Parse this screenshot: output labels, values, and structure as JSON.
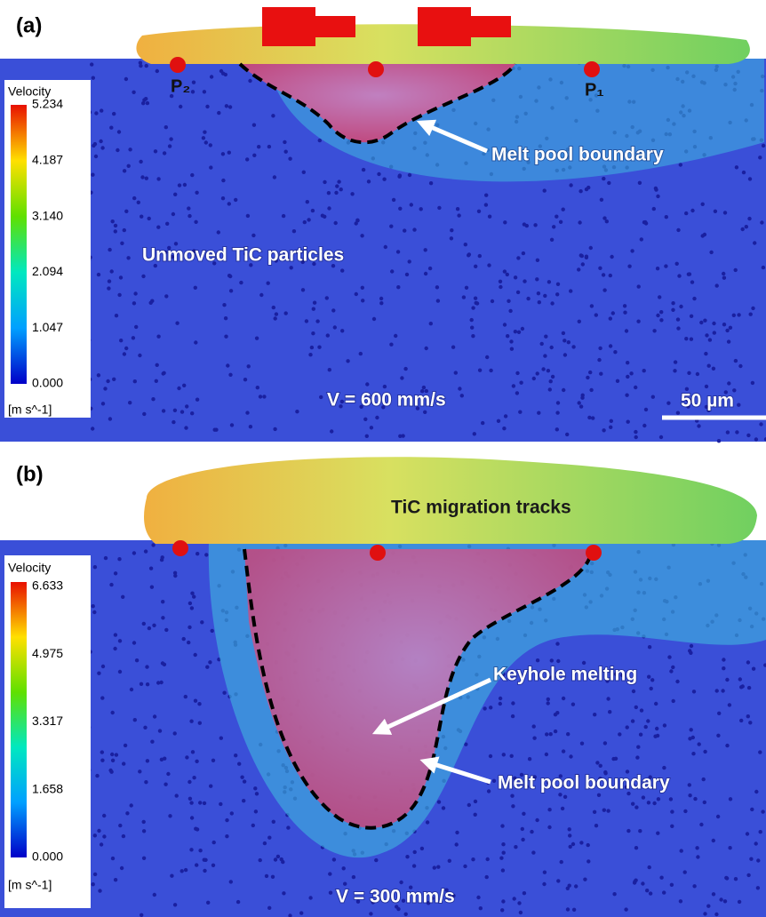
{
  "panels": [
    {
      "label": "(a)",
      "legend": {
        "title": "Velocity",
        "ticks": [
          "5.234",
          "4.187",
          "3.140",
          "2.094",
          "1.047",
          "0.000"
        ],
        "units": "[m s^-1]"
      },
      "points": [
        "P₂",
        "P₁"
      ],
      "annotations": [
        "Melt pool boundary",
        "Unmoved TiC particles"
      ],
      "speed": "V = 600 mm/s",
      "scale_bar": "50 µm"
    },
    {
      "label": "(b)",
      "legend": {
        "title": "Velocity",
        "ticks": [
          "6.633",
          "4.975",
          "3.317",
          "1.658",
          "0.000"
        ],
        "units": "[m s^-1]"
      },
      "annotations": [
        "TiC migration tracks",
        "Keyhole melting",
        "Melt pool boundary"
      ],
      "speed": "V = 300 mm/s"
    }
  ]
}
